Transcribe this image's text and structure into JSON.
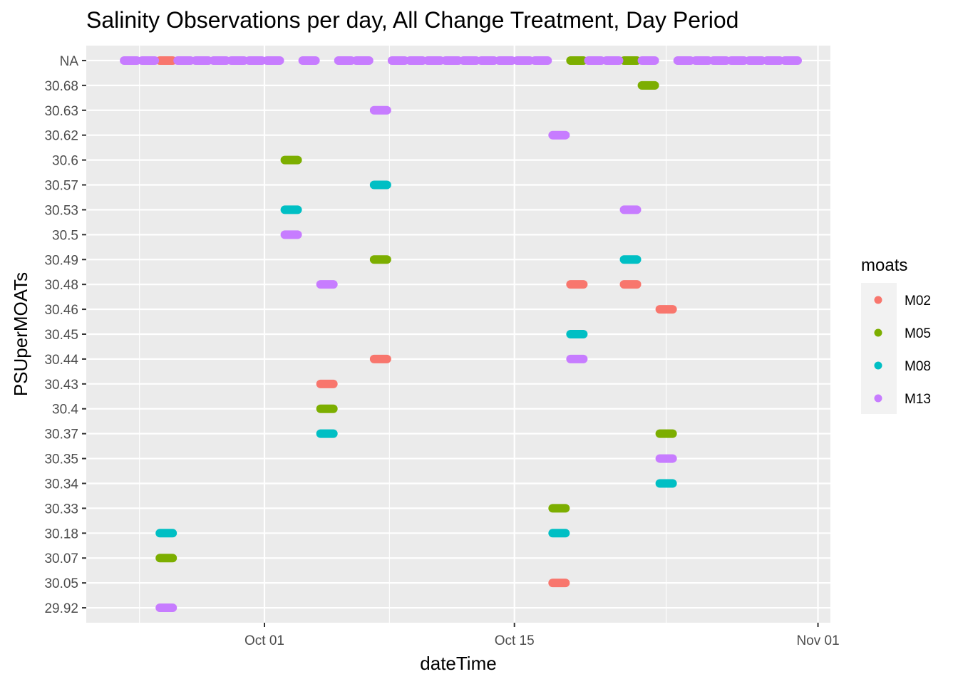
{
  "chart_data": {
    "type": "scatter",
    "title": "Salinity Observations per day, All Change Treatment, Day Period",
    "xlabel": "dateTime",
    "ylabel": "PSUperMOATs",
    "x_ticks": [
      "Oct 01",
      "Oct 15",
      "Nov 01"
    ],
    "xlim": [
      "2019-09-21",
      "2019-11-01"
    ],
    "y_categories": [
      "29.92",
      "30.05",
      "30.07",
      "30.18",
      "30.33",
      "30.34",
      "30.35",
      "30.37",
      "30.4",
      "30.43",
      "30.44",
      "30.45",
      "30.46",
      "30.48",
      "30.49",
      "30.5",
      "30.53",
      "30.57",
      "30.6",
      "30.62",
      "30.63",
      "30.68",
      "NA"
    ],
    "grid": true,
    "legend": {
      "title": "moats",
      "position": "right"
    },
    "series": [
      {
        "name": "M02",
        "color": "#F8766D",
        "points": [
          {
            "date": "2019-09-25",
            "y": "NA"
          },
          {
            "date": "2019-10-04",
            "y": "30.43"
          },
          {
            "date": "2019-10-07",
            "y": "30.44"
          },
          {
            "date": "2019-10-17",
            "y": "30.05"
          },
          {
            "date": "2019-10-18",
            "y": "30.48"
          },
          {
            "date": "2019-10-21",
            "y": "30.48"
          },
          {
            "date": "2019-10-23",
            "y": "30.46"
          }
        ]
      },
      {
        "name": "M05",
        "color": "#7CAE00",
        "points": [
          {
            "date": "2019-09-25",
            "y": "30.07"
          },
          {
            "date": "2019-10-02",
            "y": "30.6"
          },
          {
            "date": "2019-10-04",
            "y": "30.4"
          },
          {
            "date": "2019-10-07",
            "y": "30.49"
          },
          {
            "date": "2019-10-17",
            "y": "30.33"
          },
          {
            "date": "2019-10-18",
            "y": "NA"
          },
          {
            "date": "2019-10-21",
            "y": "NA"
          },
          {
            "date": "2019-10-22",
            "y": "30.68"
          },
          {
            "date": "2019-10-23",
            "y": "30.37"
          }
        ]
      },
      {
        "name": "M08",
        "color": "#00BFC4",
        "points": [
          {
            "date": "2019-09-25",
            "y": "30.18"
          },
          {
            "date": "2019-10-02",
            "y": "30.53"
          },
          {
            "date": "2019-10-04",
            "y": "30.37"
          },
          {
            "date": "2019-10-07",
            "y": "30.57"
          },
          {
            "date": "2019-10-17",
            "y": "30.18"
          },
          {
            "date": "2019-10-18",
            "y": "30.45"
          },
          {
            "date": "2019-10-21",
            "y": "30.49"
          },
          {
            "date": "2019-10-23",
            "y": "30.34"
          }
        ]
      },
      {
        "name": "M13",
        "color": "#C77CFF",
        "points": [
          {
            "date": "2019-09-23",
            "y": "NA"
          },
          {
            "date": "2019-09-24",
            "y": "NA"
          },
          {
            "date": "2019-09-25",
            "y": "29.92"
          },
          {
            "date": "2019-09-26",
            "y": "NA"
          },
          {
            "date": "2019-09-27",
            "y": "NA"
          },
          {
            "date": "2019-09-28",
            "y": "NA"
          },
          {
            "date": "2019-09-29",
            "y": "NA"
          },
          {
            "date": "2019-09-30",
            "y": "NA"
          },
          {
            "date": "2019-10-01",
            "y": "NA"
          },
          {
            "date": "2019-10-02",
            "y": "30.5"
          },
          {
            "date": "2019-10-03",
            "y": "NA"
          },
          {
            "date": "2019-10-04",
            "y": "30.48"
          },
          {
            "date": "2019-10-05",
            "y": "NA"
          },
          {
            "date": "2019-10-06",
            "y": "NA"
          },
          {
            "date": "2019-10-07",
            "y": "30.63"
          },
          {
            "date": "2019-10-08",
            "y": "NA"
          },
          {
            "date": "2019-10-09",
            "y": "NA"
          },
          {
            "date": "2019-10-10",
            "y": "NA"
          },
          {
            "date": "2019-10-11",
            "y": "NA"
          },
          {
            "date": "2019-10-12",
            "y": "NA"
          },
          {
            "date": "2019-10-13",
            "y": "NA"
          },
          {
            "date": "2019-10-14",
            "y": "NA"
          },
          {
            "date": "2019-10-15",
            "y": "NA"
          },
          {
            "date": "2019-10-16",
            "y": "NA"
          },
          {
            "date": "2019-10-17",
            "y": "30.62"
          },
          {
            "date": "2019-10-18",
            "y": "30.44"
          },
          {
            "date": "2019-10-19",
            "y": "NA"
          },
          {
            "date": "2019-10-20",
            "y": "NA"
          },
          {
            "date": "2019-10-21",
            "y": "30.53"
          },
          {
            "date": "2019-10-22",
            "y": "NA"
          },
          {
            "date": "2019-10-23",
            "y": "30.35"
          },
          {
            "date": "2019-10-24",
            "y": "NA"
          },
          {
            "date": "2019-10-25",
            "y": "NA"
          },
          {
            "date": "2019-10-26",
            "y": "NA"
          },
          {
            "date": "2019-10-27",
            "y": "NA"
          },
          {
            "date": "2019-10-28",
            "y": "NA"
          },
          {
            "date": "2019-10-29",
            "y": "NA"
          },
          {
            "date": "2019-10-30",
            "y": "NA"
          }
        ]
      }
    ]
  }
}
